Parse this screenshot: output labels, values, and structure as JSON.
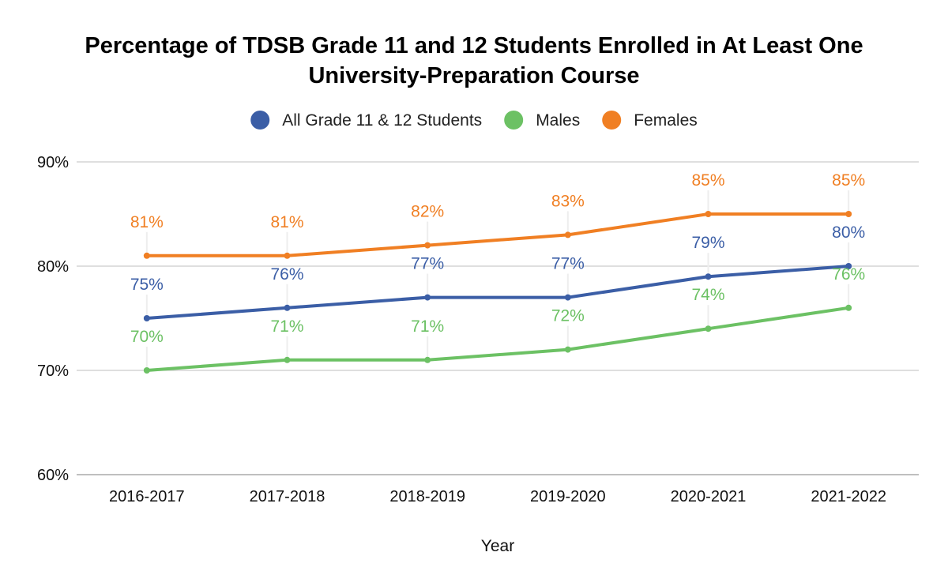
{
  "chart_data": {
    "type": "line",
    "title_lines": [
      "Percentage of TDSB Grade 11 and 12 Students Enrolled in At Least One",
      "University-Preparation Course"
    ],
    "xlabel": "Year",
    "ylabel": "",
    "categories": [
      "2016-2017",
      "2017-2018",
      "2018-2019",
      "2019-2020",
      "2020-2021",
      "2021-2022"
    ],
    "ylim": [
      60,
      90
    ],
    "yticks": [
      60,
      70,
      80,
      90
    ],
    "ytick_labels": [
      "60%",
      "70%",
      "80%",
      "90%"
    ],
    "grid": true,
    "legend_position": "top",
    "series": [
      {
        "name": "All Grade 11 & 12 Students",
        "color": "#3b5ea6",
        "values": [
          75,
          76,
          77,
          77,
          79,
          80
        ],
        "labels": [
          "75%",
          "76%",
          "77%",
          "77%",
          "79%",
          "80%"
        ]
      },
      {
        "name": "Males",
        "color": "#6cc164",
        "values": [
          70,
          71,
          71,
          72,
          74,
          76
        ],
        "labels": [
          "70%",
          "71%",
          "71%",
          "72%",
          "74%",
          "76%"
        ]
      },
      {
        "name": "Females",
        "color": "#f07f23",
        "values": [
          81,
          81,
          82,
          83,
          85,
          85
        ],
        "labels": [
          "81%",
          "81%",
          "82%",
          "83%",
          "85%",
          "85%"
        ]
      }
    ]
  }
}
